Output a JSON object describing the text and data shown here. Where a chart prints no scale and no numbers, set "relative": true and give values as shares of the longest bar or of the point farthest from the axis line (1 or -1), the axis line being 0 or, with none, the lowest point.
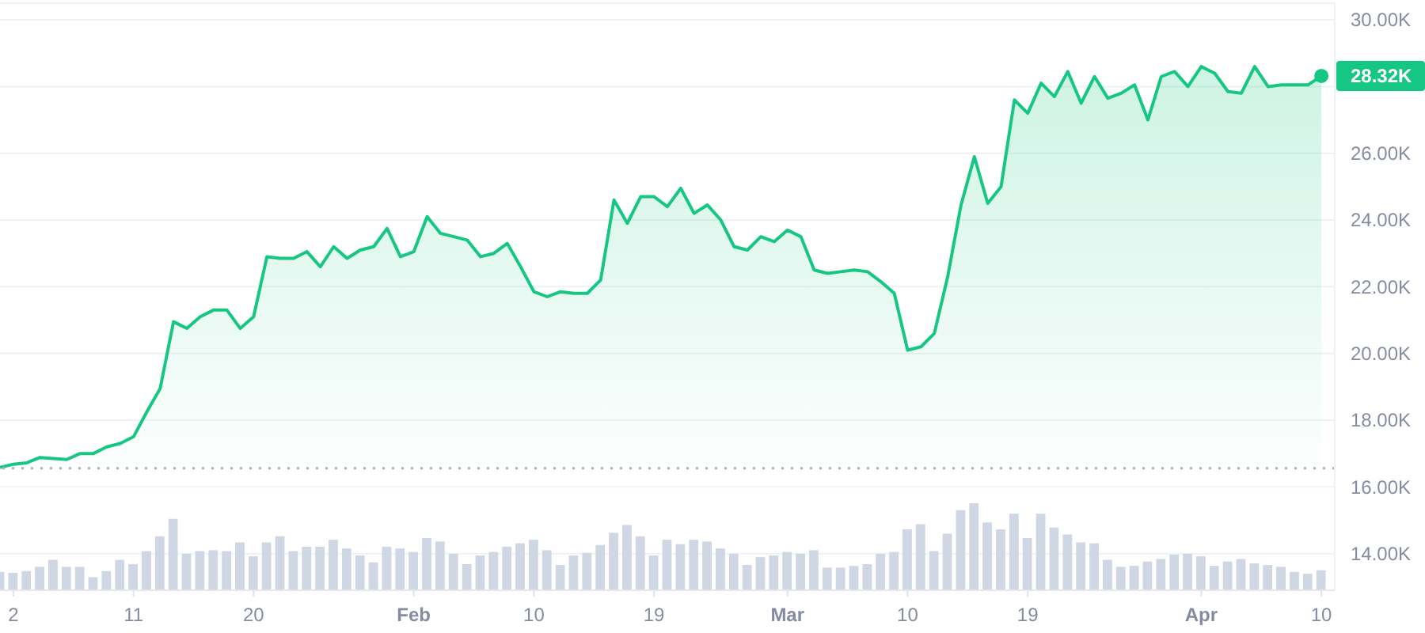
{
  "chart_data": [
    {
      "type": "area",
      "x": [
        "--01-01",
        "--01-02",
        "--01-03",
        "--01-04",
        "--01-05",
        "--01-06",
        "--01-07",
        "--01-08",
        "--01-09",
        "--01-10",
        "--01-11",
        "--01-12",
        "--01-13",
        "--01-14",
        "--01-15",
        "--01-16",
        "--01-17",
        "--01-18",
        "--01-19",
        "--01-20",
        "--01-21",
        "--01-22",
        "--01-23",
        "--01-24",
        "--01-25",
        "--01-26",
        "--01-27",
        "--01-28",
        "--01-29",
        "--01-30",
        "--01-31",
        "--02-01",
        "--02-02",
        "--02-03",
        "--02-04",
        "--02-05",
        "--02-06",
        "--02-07",
        "--02-08",
        "--02-09",
        "--02-10",
        "--02-11",
        "--02-12",
        "--02-13",
        "--02-14",
        "--02-15",
        "--02-16",
        "--02-17",
        "--02-18",
        "--02-19",
        "--02-20",
        "--02-21",
        "--02-22",
        "--02-23",
        "--02-24",
        "--02-25",
        "--02-26",
        "--02-27",
        "--02-28",
        "--03-01",
        "--03-02",
        "--03-03",
        "--03-04",
        "--03-05",
        "--03-06",
        "--03-07",
        "--03-08",
        "--03-09",
        "--03-10",
        "--03-11",
        "--03-12",
        "--03-13",
        "--03-14",
        "--03-15",
        "--03-16",
        "--03-17",
        "--03-18",
        "--03-19",
        "--03-20",
        "--03-21",
        "--03-22",
        "--03-23",
        "--03-24",
        "--03-25",
        "--03-26",
        "--03-27",
        "--03-28",
        "--03-29",
        "--03-30",
        "--03-31",
        "--04-01",
        "--04-02",
        "--04-03",
        "--04-04",
        "--04-05",
        "--04-06",
        "--04-07",
        "--04-08",
        "--04-09",
        "--04-10"
      ],
      "values": [
        16580,
        16680,
        16720,
        16880,
        16850,
        16820,
        17000,
        17000,
        17200,
        17300,
        17500,
        18250,
        18950,
        20950,
        20750,
        21100,
        21300,
        21300,
        20750,
        21100,
        22900,
        22850,
        22850,
        23050,
        22600,
        23200,
        22850,
        23100,
        23200,
        23750,
        22900,
        23050,
        24100,
        23600,
        23500,
        23400,
        22900,
        23000,
        23300,
        22600,
        21850,
        21700,
        21850,
        21800,
        21800,
        22200,
        24600,
        23900,
        24700,
        24700,
        24400,
        24950,
        24200,
        24450,
        24000,
        23200,
        23100,
        23500,
        23350,
        23700,
        23500,
        22500,
        22400,
        22450,
        22500,
        22450,
        22150,
        21800,
        20100,
        20200,
        20600,
        22300,
        24450,
        25900,
        24500,
        25000,
        27600,
        27200,
        28100,
        27700,
        28450,
        27500,
        28300,
        27650,
        27800,
        28050,
        27000,
        28300,
        28450,
        28000,
        28600,
        28400,
        27850,
        27800,
        28600,
        28000,
        28050,
        28050,
        28050,
        28320
      ],
      "value_labels": [
        null,
        null,
        null,
        null,
        null,
        null,
        null,
        null,
        null,
        null,
        null,
        null,
        null,
        null,
        null,
        null,
        null,
        null,
        null,
        null,
        null,
        null,
        null,
        null,
        null,
        null,
        null,
        null,
        null,
        null,
        null,
        null,
        null,
        null,
        null,
        null,
        null,
        null,
        null,
        null,
        null,
        null,
        null,
        null,
        null,
        null,
        null,
        null,
        null,
        null,
        null,
        null,
        null,
        null,
        null,
        null,
        null,
        null,
        null,
        null,
        null,
        null,
        null,
        null,
        null,
        null,
        null,
        null,
        null,
        null,
        null,
        null,
        null,
        null,
        null,
        null,
        null,
        null,
        null,
        null,
        null,
        null,
        null,
        null,
        null,
        null,
        null,
        null,
        null,
        null,
        null,
        null,
        null,
        null,
        null,
        null,
        null,
        null,
        null,
        "28.32K"
      ],
      "color": "#16c784",
      "xlim": [
        "--01-01",
        "--04-11"
      ],
      "xticks": [
        {
          "value": "--01-02",
          "label": "2"
        },
        {
          "value": "--01-11",
          "label": "11"
        },
        {
          "value": "--01-20",
          "label": "20"
        },
        {
          "value": "--02-01",
          "label": "Feb"
        },
        {
          "value": "--02-10",
          "label": "10"
        },
        {
          "value": "--02-19",
          "label": "19"
        },
        {
          "value": "--03-01",
          "label": "Mar"
        },
        {
          "value": "--03-10",
          "label": "10"
        },
        {
          "value": "--03-19",
          "label": "19"
        },
        {
          "value": "--04-01",
          "label": "Apr"
        },
        {
          "value": "--04-10",
          "label": "10"
        }
      ],
      "ylim": [
        12900,
        30500
      ],
      "yticks": [
        {
          "value": 14000,
          "label": "14.00K"
        },
        {
          "value": 16000,
          "label": "16.00K"
        },
        {
          "value": 18000,
          "label": "18.00K"
        },
        {
          "value": 20000,
          "label": "20.00K"
        },
        {
          "value": 22000,
          "label": "22.00K"
        },
        {
          "value": 24000,
          "label": "24.00K"
        },
        {
          "value": 26000,
          "label": "26.00K"
        },
        {
          "value": 28000,
          "label": null
        },
        {
          "value": 30000,
          "label": "30.00K"
        }
      ],
      "grid": "y",
      "ref_lines": [
        {
          "axis": "y",
          "value": 16560,
          "line_style": "dotted",
          "color": "#a6b0c3"
        }
      ]
    },
    {
      "type": "bar",
      "x": [
        "--01-01",
        "--01-02",
        "--01-03",
        "--01-04",
        "--01-05",
        "--01-06",
        "--01-07",
        "--01-08",
        "--01-09",
        "--01-10",
        "--01-11",
        "--01-12",
        "--01-13",
        "--01-14",
        "--01-15",
        "--01-16",
        "--01-17",
        "--01-18",
        "--01-19",
        "--01-20",
        "--01-21",
        "--01-22",
        "--01-23",
        "--01-24",
        "--01-25",
        "--01-26",
        "--01-27",
        "--01-28",
        "--01-29",
        "--01-30",
        "--01-31",
        "--02-01",
        "--02-02",
        "--02-03",
        "--02-04",
        "--02-05",
        "--02-06",
        "--02-07",
        "--02-08",
        "--02-09",
        "--02-10",
        "--02-11",
        "--02-12",
        "--02-13",
        "--02-14",
        "--02-15",
        "--02-16",
        "--02-17",
        "--02-18",
        "--02-19",
        "--02-20",
        "--02-21",
        "--02-22",
        "--02-23",
        "--02-24",
        "--02-25",
        "--02-26",
        "--02-27",
        "--02-28",
        "--03-01",
        "--03-02",
        "--03-03",
        "--03-04",
        "--03-05",
        "--03-06",
        "--03-07",
        "--03-08",
        "--03-09",
        "--03-10",
        "--03-11",
        "--03-12",
        "--03-13",
        "--03-14",
        "--03-15",
        "--03-16",
        "--03-17",
        "--03-18",
        "--03-19",
        "--03-20",
        "--03-21",
        "--03-22",
        "--03-23",
        "--03-24",
        "--03-25",
        "--03-26",
        "--03-27",
        "--03-28",
        "--03-29",
        "--03-30",
        "--03-31",
        "--04-01",
        "--04-02",
        "--04-03",
        "--04-04",
        "--04-05",
        "--04-06",
        "--04-07",
        "--04-08",
        "--04-09",
        "--04-10"
      ],
      "values": [
        0.21,
        0.2,
        0.22,
        0.27,
        0.35,
        0.27,
        0.27,
        0.15,
        0.22,
        0.35,
        0.3,
        0.45,
        0.62,
        0.82,
        0.42,
        0.45,
        0.46,
        0.45,
        0.55,
        0.39,
        0.55,
        0.62,
        0.45,
        0.5,
        0.5,
        0.58,
        0.48,
        0.4,
        0.32,
        0.5,
        0.48,
        0.44,
        0.6,
        0.56,
        0.42,
        0.3,
        0.4,
        0.44,
        0.5,
        0.54,
        0.58,
        0.46,
        0.29,
        0.4,
        0.43,
        0.52,
        0.66,
        0.75,
        0.62,
        0.4,
        0.58,
        0.53,
        0.58,
        0.56,
        0.48,
        0.42,
        0.29,
        0.38,
        0.4,
        0.44,
        0.42,
        0.46,
        0.26,
        0.26,
        0.28,
        0.3,
        0.42,
        0.44,
        0.7,
        0.76,
        0.45,
        0.65,
        0.92,
        1,
        0.78,
        0.7,
        0.88,
        0.6,
        0.88,
        0.72,
        0.64,
        0.55,
        0.54,
        0.35,
        0.27,
        0.28,
        0.33,
        0.36,
        0.41,
        0.42,
        0.39,
        0.28,
        0.33,
        0.36,
        0.31,
        0.29,
        0.27,
        0.21,
        0.19,
        0.23
      ],
      "color": "#cfd6e4",
      "relative": true,
      "xlim": [
        "--01-01",
        "--04-11"
      ],
      "tick_labels": false
    }
  ]
}
